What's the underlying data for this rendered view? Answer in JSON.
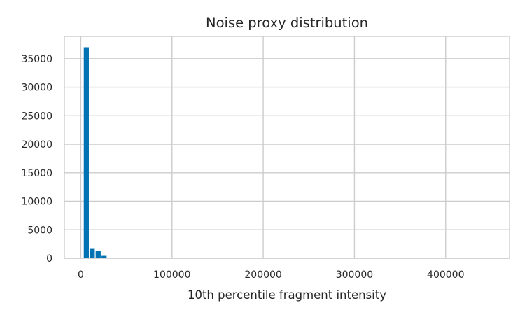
{
  "chart_data": {
    "type": "bar",
    "title": "Noise proxy distribution",
    "xlabel": "10th percentile fragment intensity",
    "ylabel": "",
    "xlim": [
      -18000,
      470000
    ],
    "ylim": [
      0,
      38900
    ],
    "xticks": [
      0,
      100000,
      200000,
      300000,
      400000
    ],
    "xtick_labels": [
      "0",
      "100000",
      "200000",
      "300000",
      "400000"
    ],
    "yticks": [
      0,
      5000,
      10000,
      15000,
      20000,
      25000,
      30000,
      35000
    ],
    "ytick_labels": [
      "0",
      "5000",
      "10000",
      "15000",
      "20000",
      "25000",
      "30000",
      "35000"
    ],
    "grid": true,
    "color": "#0173b2",
    "bin_width": 6500,
    "bins": [
      {
        "x0": 2800,
        "x1": 9300,
        "count": 37000
      },
      {
        "x0": 9300,
        "x1": 15800,
        "count": 1650
      },
      {
        "x0": 15800,
        "x1": 22300,
        "count": 1250
      },
      {
        "x0": 22300,
        "x1": 28800,
        "count": 420
      },
      {
        "x0": 28800,
        "x1": 35300,
        "count": 60
      }
    ]
  }
}
